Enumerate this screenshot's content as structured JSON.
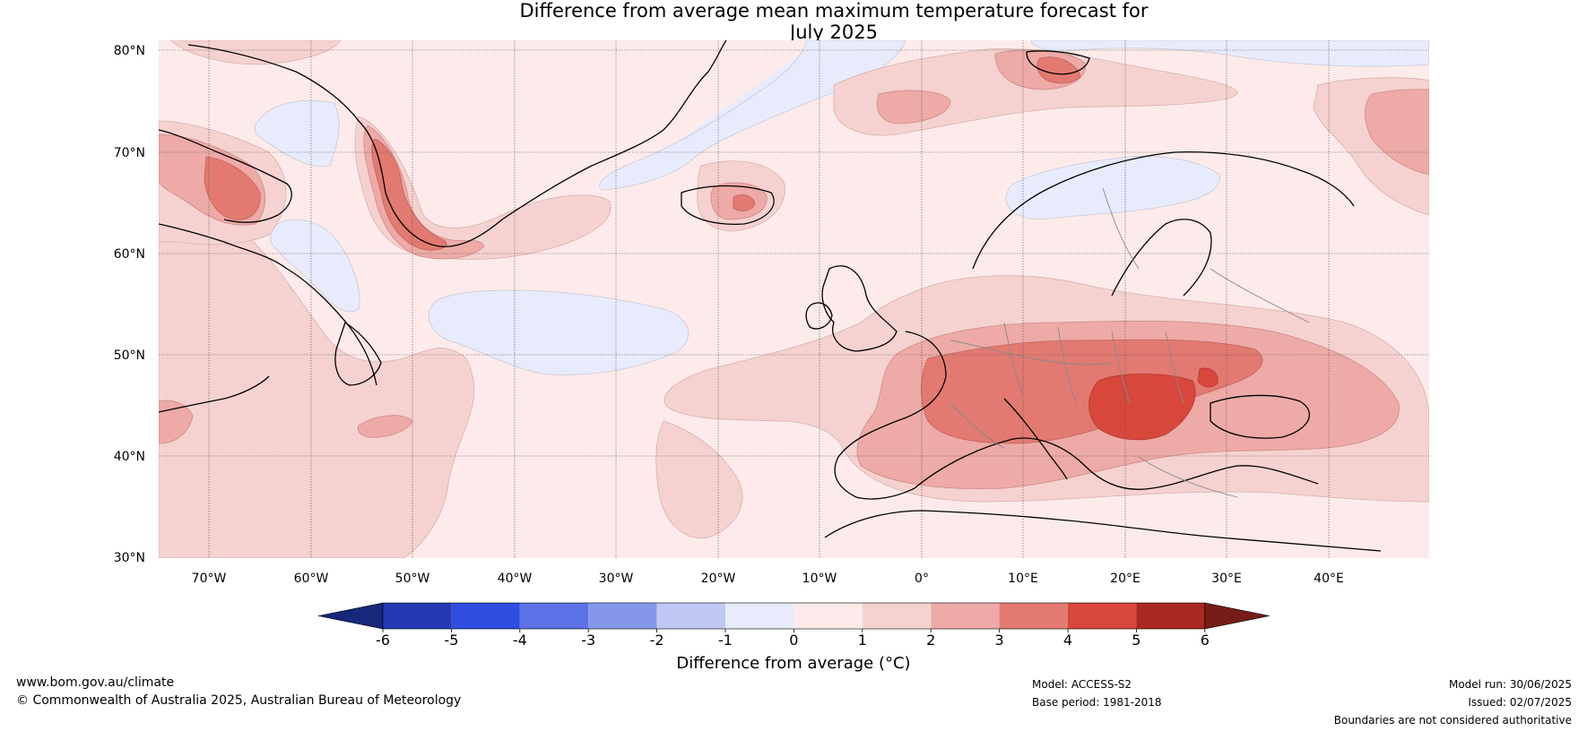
{
  "title_line1": "Difference from average mean maximum temperature forecast for",
  "title_line2": "July 2025",
  "lat_labels": [
    "80°N",
    "70°N",
    "60°N",
    "50°N",
    "40°N",
    "30°N"
  ],
  "lon_labels": [
    "70°W",
    "60°W",
    "50°W",
    "40°W",
    "30°W",
    "20°W",
    "10°W",
    "0°",
    "10°E",
    "20°E",
    "30°E",
    "40°E"
  ],
  "colorbar": {
    "ticks": [
      "-6",
      "-5",
      "-4",
      "-3",
      "-2",
      "-1",
      "0",
      "1",
      "2",
      "3",
      "4",
      "5",
      "6"
    ],
    "label": "Difference from average (°C)",
    "colors": [
      "#16287a",
      "#2539b4",
      "#2f4fe0",
      "#5c72e6",
      "#8597e9",
      "#bfc8f2",
      "#e8ebfb",
      "#fcebea",
      "#f5d2d0",
      "#edaaa6",
      "#e27a72",
      "#d7473c",
      "#a82823",
      "#761c17"
    ]
  },
  "footer": {
    "url": "www.bom.gov.au/climate",
    "copyright": "© Commonwealth of Australia 2025, Australian Bureau of Meteorology",
    "model": "Model: ACCESS-S2",
    "base_period": "Base period: 1981-2018",
    "model_run": "Model run: 30/06/2025",
    "issued": "Issued: 02/07/2025",
    "boundaries": "Boundaries are not considered authoritative"
  }
}
